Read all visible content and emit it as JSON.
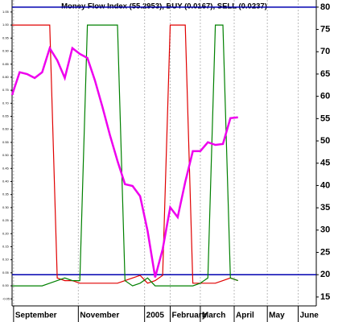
{
  "chart_data": {
    "type": "line",
    "title": "Money Flow Index (55.2953), BUY (0.0167), SELL (0.0237)",
    "x": [
      0,
      1,
      2,
      3,
      4,
      5,
      6,
      7,
      8,
      9,
      10,
      11,
      12,
      13,
      14,
      15,
      16,
      17,
      18,
      19,
      20,
      21,
      22,
      23,
      24,
      25,
      26,
      27,
      28,
      29,
      30
    ],
    "xlim": [
      0,
      40.4
    ],
    "xticks": [
      {
        "value": 0.2,
        "label": "September"
      },
      {
        "value": 8.8,
        "label": "November"
      },
      {
        "value": 17.6,
        "label": "2005"
      },
      {
        "value": 21,
        "label": "February"
      },
      {
        "value": 25,
        "label": "March"
      },
      {
        "value": 29.5,
        "label": "April"
      },
      {
        "value": 33.9,
        "label": "May"
      },
      {
        "value": 38,
        "label": "June"
      }
    ],
    "ylim": [
      13,
      81.6
    ],
    "yticks": [
      15,
      20,
      25,
      30,
      35,
      40,
      45,
      50,
      55,
      60,
      65,
      70,
      75,
      80
    ],
    "y2lim": [
      -0.077,
      1.096
    ],
    "y2ticks": [
      {
        "value": 1.05,
        "label": "1.05"
      },
      {
        "value": 1.0,
        "label": "1.00"
      },
      {
        "value": 0.95,
        "label": "0.95"
      },
      {
        "value": 0.9,
        "label": "0.90"
      },
      {
        "value": 0.85,
        "label": "0.85"
      },
      {
        "value": 0.8,
        "label": "0.80"
      },
      {
        "value": 0.75,
        "label": "0.75"
      },
      {
        "value": 0.7,
        "label": "0.70"
      },
      {
        "value": 0.65,
        "label": "0.65"
      },
      {
        "value": 0.6,
        "label": "0.60"
      },
      {
        "value": 0.55,
        "label": "0.55"
      },
      {
        "value": 0.5,
        "label": "0.50"
      },
      {
        "value": 0.45,
        "label": "0.45"
      },
      {
        "value": 0.4,
        "label": "0.40"
      },
      {
        "value": 0.35,
        "label": "0.35"
      },
      {
        "value": 0.3,
        "label": "0.30"
      },
      {
        "value": 0.25,
        "label": "0.25"
      },
      {
        "value": 0.2,
        "label": "0.20"
      },
      {
        "value": 0.15,
        "label": "0.15"
      },
      {
        "value": 0.1,
        "label": "0.10"
      },
      {
        "value": 0.05,
        "label": "0.05"
      },
      {
        "value": 0,
        "label": "0.00"
      },
      {
        "value": -0.05,
        "label": "-0.05"
      }
    ],
    "reference_lines": [
      80,
      20
    ],
    "reference_color": "#0000b0",
    "grid": true,
    "series": [
      {
        "color": "#ee00ee",
        "values": [
          60.3,
          65.4,
          65,
          64.1,
          65.4,
          70.8,
          68.1,
          64.1,
          70.8,
          69.5,
          68.6,
          63.6,
          57.6,
          51.3,
          45.5,
          40.3,
          39.9,
          37.6,
          29.8,
          19.4,
          25.7,
          35.1,
          32.9,
          40.8,
          47.7,
          47.7,
          49.7,
          49.1,
          49.3,
          55.1,
          55.3
        ]
      },
      {
        "color": "#008000",
        "axis": "y2",
        "values": [
          0,
          0,
          0,
          0,
          0,
          0.01,
          0.02,
          0.03,
          0.02,
          0.02,
          1,
          1,
          1,
          1,
          1,
          0.02,
          0,
          0.01,
          0.03,
          0,
          0,
          0,
          0,
          0,
          0,
          0.01,
          0.03,
          1,
          1,
          0.03,
          0.02
        ]
      },
      {
        "color": "#e00000",
        "axis": "y2",
        "values": [
          1,
          1,
          1,
          1,
          1,
          1,
          0.03,
          0.02,
          0.02,
          0.01,
          0.01,
          0.01,
          0.01,
          0.01,
          0.01,
          0.02,
          0.03,
          0.04,
          0.01,
          0.02,
          0.04,
          1,
          1,
          1,
          0.01,
          0.01,
          0.01,
          0.01,
          0.02,
          0.03,
          0.02
        ]
      }
    ]
  }
}
